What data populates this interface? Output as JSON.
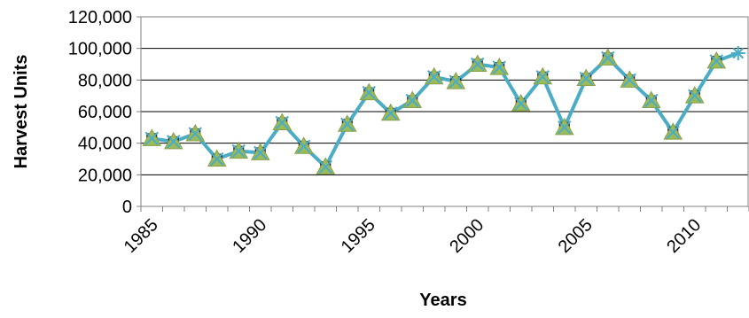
{
  "chart_data": {
    "type": "line",
    "title": "",
    "xlabel": "Years",
    "ylabel": "Harvest Units",
    "xlim": [
      1985,
      2012
    ],
    "ylim": [
      0,
      120000
    ],
    "grid": true,
    "legend": "none",
    "x_tick_labels": [
      "1985",
      "1990",
      "1995",
      "2000",
      "2005",
      "2010"
    ],
    "y_tick_labels": [
      "0",
      "20,000",
      "40,000",
      "60,000",
      "80,000",
      "100,000",
      "120,000"
    ],
    "series": [
      {
        "x": [
          1985,
          1986,
          1987,
          1988,
          1989,
          1990,
          1991,
          1992,
          1993,
          1994,
          1995,
          1996,
          1997,
          1998,
          1999,
          2000,
          2001,
          2002,
          2003,
          2004,
          2005,
          2006,
          2007,
          2008,
          2009,
          2010,
          2011,
          2012
        ],
        "values": [
          43000,
          41000,
          46000,
          30000,
          35000,
          34000,
          53000,
          38000,
          25000,
          52000,
          72000,
          59000,
          67000,
          82000,
          79000,
          90000,
          88000,
          65000,
          82000,
          50000,
          81000,
          94000,
          80000,
          67000,
          47000,
          70000,
          92000,
          97000
        ],
        "color": "#4BACC6",
        "marker_color": "#9BBB59"
      }
    ]
  }
}
